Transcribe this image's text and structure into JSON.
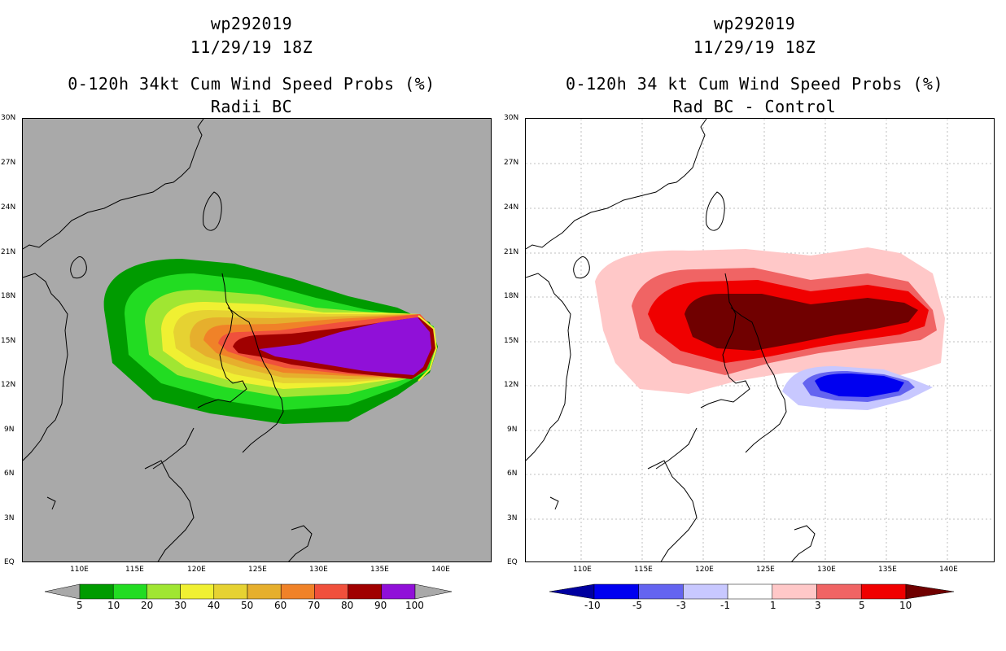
{
  "left": {
    "storm_id": "wp292019",
    "datetime": "11/29/19 18Z",
    "title_line1": "0-120h 34kt Cum Wind Speed Probs (%)",
    "title_line2": "Radii BC",
    "background_color": "#a9a9a9",
    "colorbar": {
      "colors": [
        "#009b00",
        "#22dc22",
        "#a0e632",
        "#f0f032",
        "#e6d232",
        "#e6af2d",
        "#f08228",
        "#f0503c",
        "#a00000",
        "#9010d8"
      ],
      "labels": [
        "5",
        "10",
        "20",
        "30",
        "40",
        "50",
        "60",
        "70",
        "80",
        "90",
        "100"
      ]
    }
  },
  "right": {
    "storm_id": "wp292019",
    "datetime": "11/29/19 18Z",
    "title_line1": "0-120h 34 kt Cum Wind Speed Probs (%)",
    "title_line2": "Rad BC - Control",
    "background_color": "#ffffff",
    "colorbar": {
      "colors": [
        "#0000a0",
        "#0000f0",
        "#6464f0",
        "#c8c8ff",
        "#ffffff",
        "#ffc8c8",
        "#f06464",
        "#f00000",
        "#700000"
      ],
      "labels": [
        "-10",
        "-5",
        "-3",
        "-1",
        "1",
        "3",
        "5",
        "10"
      ]
    }
  },
  "axes": {
    "lat_labels": [
      "EQ",
      "3N",
      "6N",
      "9N",
      "12N",
      "15N",
      "18N",
      "21N",
      "24N",
      "27N",
      "30N"
    ],
    "lon_labels": [
      "110E",
      "115E",
      "120E",
      "125E",
      "130E",
      "135E",
      "140E"
    ]
  },
  "colors": {
    "coast": "#000000",
    "grid": "#bfbfbf"
  }
}
